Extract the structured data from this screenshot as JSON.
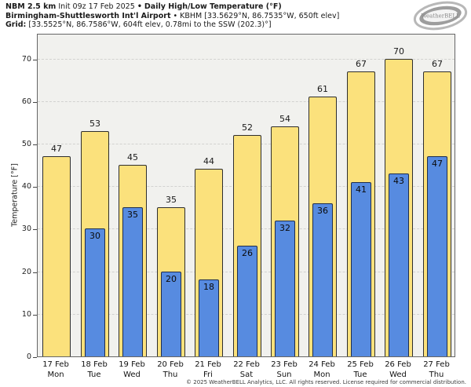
{
  "header": {
    "line1": {
      "model": "NBM 2.5 km",
      "init": "Init 09z 17 Feb 2025",
      "sep": "•",
      "product": "Daily High/Low Temperature (°F)"
    },
    "line2": {
      "station": "Birmingham-Shuttlesworth Int'l Airport",
      "sep": "•",
      "details": "KBHM [33.5629°N, 86.7535°W, 650ft elev]"
    },
    "line3": {
      "label": "Grid:",
      "details": "[33.5525°N, 86.7586°W, 604ft elev, 0.78mi to the SSW (202.3)°]"
    }
  },
  "logo": {
    "text": "WeatherBELL"
  },
  "footer": {
    "copyright": "© 2025 WeatherBELL Analytics, LLC. All rights reserved. License required for commercial distribution."
  },
  "chart_data": {
    "type": "bar",
    "title": "Daily High/Low Temperature (°F)",
    "ylabel": "Temperature [°F]",
    "ylim": [
      0,
      76
    ],
    "yticks": [
      0,
      10,
      20,
      30,
      40,
      50,
      60,
      70
    ],
    "grid": "horizontal-dashed",
    "legend_position": "none",
    "categories": [
      {
        "date": "17 Feb",
        "day": "Mon"
      },
      {
        "date": "18 Feb",
        "day": "Tue"
      },
      {
        "date": "19 Feb",
        "day": "Wed"
      },
      {
        "date": "20 Feb",
        "day": "Thu"
      },
      {
        "date": "21 Feb",
        "day": "Fri"
      },
      {
        "date": "22 Feb",
        "day": "Sat"
      },
      {
        "date": "23 Feb",
        "day": "Sun"
      },
      {
        "date": "24 Feb",
        "day": "Mon"
      },
      {
        "date": "25 Feb",
        "day": "Tue"
      },
      {
        "date": "26 Feb",
        "day": "Wed"
      },
      {
        "date": "27 Feb",
        "day": "Thu"
      }
    ],
    "series": [
      {
        "name": "High",
        "color": "#fbe17c",
        "values": [
          47,
          53,
          45,
          35,
          44,
          52,
          54,
          61,
          67,
          70,
          67
        ]
      },
      {
        "name": "Low",
        "color": "#578be0",
        "values": [
          null,
          30,
          35,
          20,
          18,
          26,
          32,
          36,
          41,
          43,
          47
        ]
      }
    ]
  }
}
